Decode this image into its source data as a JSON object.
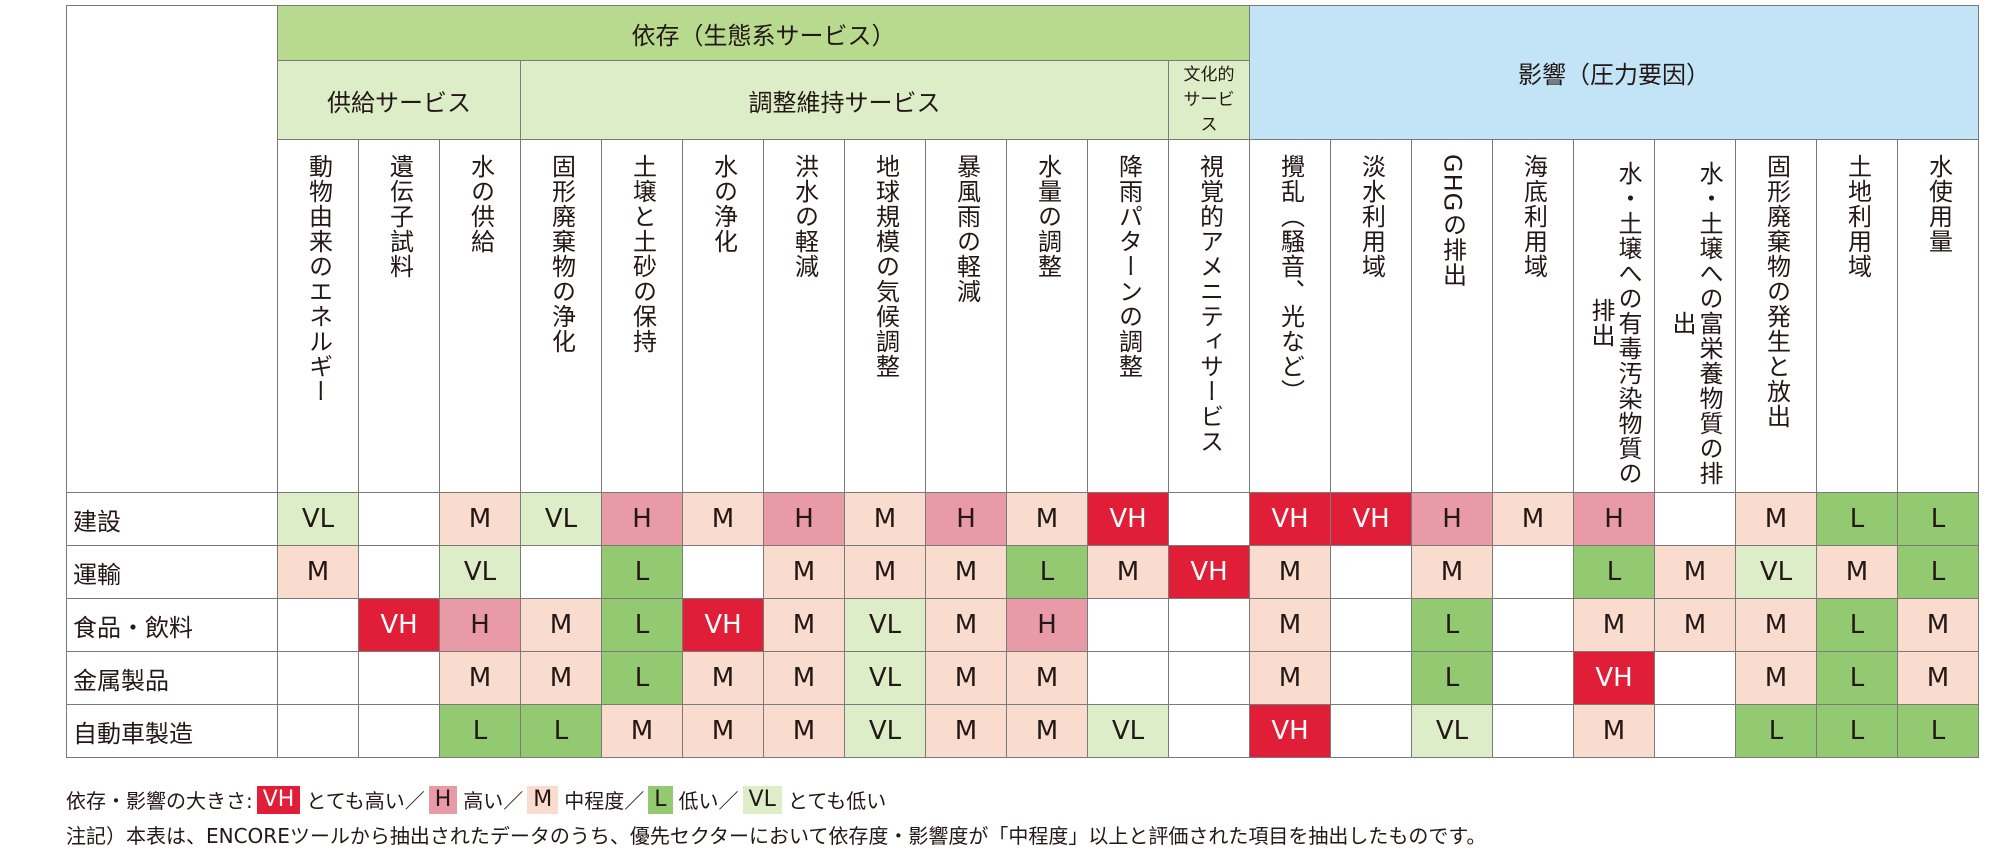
{
  "header": {
    "dependence": "依存（生態系サービス）",
    "impact": "影響（圧力要因）",
    "groups": [
      "供給サービス",
      "調整維持サービス",
      "文化的サービス"
    ]
  },
  "columns": [
    "動物由来のエネルギー",
    "遺伝子試料",
    "水の供給",
    "固形廃棄物の浄化",
    "土壌と土砂の保持",
    "水の浄化",
    "洪水の軽減",
    "地球規模の気候調整",
    "暴風雨の軽減",
    "水量の調整",
    "降雨パターンの調整",
    "視覚的アメニティサービス",
    "攪乱（騒音、光など）",
    "淡水利用域",
    "GHGの排出",
    "海底利用域",
    "水・土壌への有毒汚染物質の排出",
    "水・土壌への富栄養物質の排出",
    "固形廃棄物の発生と放出",
    "土地利用域",
    "水使用量"
  ],
  "rows": [
    {
      "label": "建設",
      "values": [
        "VL",
        "",
        "M",
        "VL",
        "H",
        "M",
        "H",
        "M",
        "H",
        "M",
        "VH",
        "",
        "VH",
        "VH",
        "H",
        "M",
        "H",
        "",
        "M",
        "L",
        "L"
      ]
    },
    {
      "label": "運輸",
      "values": [
        "M",
        "",
        "VL",
        "",
        "L",
        "",
        "M",
        "M",
        "M",
        "L",
        "M",
        "VH",
        "M",
        "",
        "M",
        "",
        "L",
        "M",
        "VL",
        "M",
        "L"
      ]
    },
    {
      "label": "食品・飲料",
      "values": [
        "",
        "VH",
        "H",
        "M",
        "L",
        "VH",
        "M",
        "VL",
        "M",
        "H",
        "",
        "",
        "M",
        "",
        "L",
        "",
        "M",
        "M",
        "M",
        "L",
        "M"
      ]
    },
    {
      "label": "金属製品",
      "values": [
        "",
        "",
        "M",
        "M",
        "L",
        "M",
        "M",
        "VL",
        "M",
        "M",
        "",
        "",
        "M",
        "",
        "L",
        "",
        "VH",
        "",
        "M",
        "L",
        "M"
      ]
    },
    {
      "label": "自動車製造",
      "values": [
        "",
        "",
        "L",
        "L",
        "M",
        "M",
        "M",
        "VL",
        "M",
        "M",
        "VL",
        "",
        "VH",
        "",
        "VL",
        "",
        "M",
        "",
        "L",
        "L",
        "L"
      ]
    }
  ],
  "legend": {
    "prefix": "依存・影響の大きさ:",
    "items": [
      {
        "code": "VH",
        "text": "とても高い／"
      },
      {
        "code": "H",
        "text": "高い／"
      },
      {
        "code": "M",
        "text": "中程度／"
      },
      {
        "code": "L",
        "text": "低い／"
      },
      {
        "code": "VL",
        "text": "とても低い"
      }
    ]
  },
  "note": "注記）本表は、ENCOREツールから抽出されたデータのうち、優先セクターにおいて依存度・影響度が「中程度」以上と評価された項目を抽出したものです。",
  "colors": {
    "VH": "#e01e37",
    "H": "#e89aa6",
    "M": "#f9dccd",
    "L": "#93c971",
    "VL": "#dcedc8",
    "dependence_header": "#b8da8f",
    "impact_header": "#c2e4f6"
  }
}
